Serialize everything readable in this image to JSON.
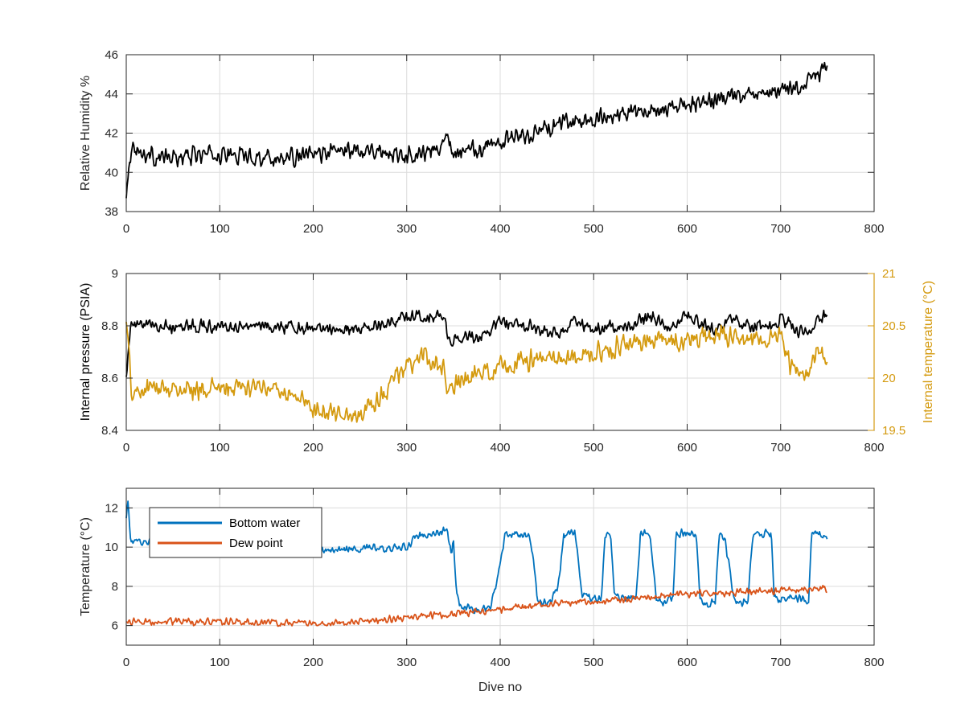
{
  "chart_data": [
    {
      "type": "line",
      "xlabel": "",
      "ylabel": "Relative Humidity %",
      "xlim": [
        0,
        800
      ],
      "ylim": [
        38,
        46
      ],
      "xticks": [
        0,
        100,
        200,
        300,
        400,
        500,
        600,
        700,
        800
      ],
      "yticks": [
        38,
        40,
        42,
        44,
        46
      ],
      "grid": true,
      "series": [
        {
          "color": "#000000",
          "axis": "left",
          "x": [
            0,
            3,
            8,
            15,
            30,
            50,
            80,
            110,
            140,
            170,
            200,
            230,
            260,
            290,
            320,
            335,
            342,
            350,
            380,
            410,
            440,
            470,
            500,
            530,
            560,
            590,
            620,
            650,
            680,
            700,
            720,
            750
          ],
          "y": [
            38.6,
            40.7,
            41.5,
            41.0,
            40.8,
            40.7,
            40.9,
            40.9,
            40.8,
            40.7,
            40.9,
            41.1,
            41.2,
            40.9,
            41.0,
            41.2,
            42.3,
            40.9,
            41.3,
            41.7,
            42.1,
            42.5,
            42.7,
            43.0,
            43.1,
            43.3,
            43.6,
            43.8,
            44.0,
            44.1,
            44.4,
            45.3
          ],
          "noise": 0.55
        }
      ]
    },
    {
      "type": "line",
      "xlabel": "",
      "ylabel": "Internal pressure (PSIA)",
      "ylabel_right": "Internal temperature (°C)",
      "xlim": [
        0,
        800
      ],
      "ylim": [
        8.4,
        9.0
      ],
      "ylim_right": [
        19.5,
        21.0
      ],
      "xticks": [
        0,
        100,
        200,
        300,
        400,
        500,
        600,
        700,
        800
      ],
      "yticks": [
        8.4,
        8.6,
        8.8,
        9.0
      ],
      "yticks_right": [
        19.5,
        20.0,
        20.5,
        21.0
      ],
      "grid": true,
      "series": [
        {
          "color": "#000000",
          "axis": "left",
          "x": [
            0,
            5,
            15,
            50,
            100,
            150,
            200,
            250,
            280,
            300,
            320,
            340,
            345,
            348,
            360,
            390,
            392,
            420,
            440,
            450,
            470,
            480,
            490,
            500,
            520,
            540,
            550,
            570,
            580,
            600,
            610,
            630,
            650,
            660,
            690,
            700,
            720,
            730,
            740,
            750
          ],
          "y": [
            8.62,
            8.8,
            8.8,
            8.8,
            8.8,
            8.8,
            8.79,
            8.79,
            8.81,
            8.83,
            8.84,
            8.84,
            8.75,
            8.74,
            8.76,
            8.77,
            8.81,
            8.81,
            8.79,
            8.77,
            8.78,
            8.82,
            8.8,
            8.78,
            8.8,
            8.79,
            8.83,
            8.82,
            8.79,
            8.84,
            8.82,
            8.78,
            8.84,
            8.8,
            8.79,
            8.83,
            8.78,
            8.78,
            8.84,
            8.84
          ],
          "noise": 0.03
        },
        {
          "color": "#D49A0F",
          "axis": "right",
          "x": [
            0,
            3,
            5,
            10,
            20,
            40,
            70,
            100,
            130,
            160,
            180,
            200,
            220,
            240,
            260,
            280,
            290,
            300,
            320,
            340,
            345,
            350,
            360,
            380,
            400,
            420,
            440,
            460,
            480,
            500,
            530,
            560,
            590,
            620,
            650,
            680,
            700,
            710,
            730,
            740,
            750
          ],
          "y": [
            20.6,
            20.2,
            19.9,
            19.85,
            19.9,
            19.9,
            19.9,
            19.9,
            19.9,
            19.9,
            19.85,
            19.7,
            19.7,
            19.65,
            19.7,
            19.9,
            20.05,
            20.1,
            20.2,
            20.1,
            19.8,
            19.9,
            20.0,
            20.05,
            20.1,
            20.15,
            20.2,
            20.2,
            20.2,
            20.25,
            20.3,
            20.35,
            20.35,
            20.4,
            20.4,
            20.35,
            20.4,
            20.1,
            20.05,
            20.3,
            20.1
          ],
          "noise": 0.12
        }
      ]
    },
    {
      "type": "line",
      "xlabel": "Dive no",
      "ylabel": "Temperature (°C)",
      "xlim": [
        0,
        800
      ],
      "ylim": [
        5,
        13
      ],
      "xticks": [
        0,
        100,
        200,
        300,
        400,
        500,
        600,
        700,
        800
      ],
      "yticks": [
        6,
        8,
        10,
        12
      ],
      "grid": true,
      "legend": "top-left",
      "series": [
        {
          "name": "Bottom water",
          "color": "#0072BD",
          "axis": "left",
          "x": [
            0,
            2,
            5,
            20,
            100,
            200,
            300,
            310,
            320,
            335,
            343,
            348,
            350,
            353,
            358,
            375,
            390,
            398,
            405,
            430,
            435,
            440,
            445,
            455,
            462,
            468,
            480,
            484,
            488,
            508,
            512,
            518,
            522,
            530,
            545,
            550,
            560,
            567,
            572,
            585,
            588,
            592,
            600,
            610,
            614,
            620,
            630,
            634,
            640,
            650,
            655,
            665,
            670,
            675,
            690,
            693,
            698,
            710,
            730,
            733,
            737,
            750
          ],
          "y": [
            11.5,
            12.3,
            10.2,
            10.3,
            10.1,
            9.8,
            10.0,
            10.5,
            10.6,
            10.8,
            10.8,
            9.5,
            10.3,
            7.7,
            7.0,
            6.8,
            7.0,
            8.5,
            10.6,
            10.7,
            9.5,
            7.3,
            7.1,
            7.3,
            8.0,
            10.6,
            10.8,
            9.0,
            7.5,
            7.3,
            10.6,
            10.7,
            7.6,
            7.5,
            7.4,
            10.7,
            10.7,
            7.5,
            7.2,
            7.4,
            10.6,
            10.7,
            10.7,
            10.6,
            7.3,
            7.1,
            7.3,
            10.6,
            10.6,
            7.3,
            7.1,
            7.3,
            10.6,
            10.7,
            10.7,
            7.5,
            7.2,
            7.5,
            7.2,
            10.5,
            10.8,
            10.5
          ],
          "noise": 0.25
        },
        {
          "name": "Dew point",
          "color": "#D95319",
          "axis": "left",
          "x": [
            0,
            100,
            200,
            250,
            300,
            350,
            400,
            450,
            500,
            550,
            600,
            650,
            700,
            750
          ],
          "y": [
            6.2,
            6.2,
            6.1,
            6.2,
            6.4,
            6.6,
            6.8,
            7.1,
            7.2,
            7.4,
            7.6,
            7.7,
            7.8,
            7.9
          ],
          "noise": 0.22
        }
      ]
    }
  ]
}
